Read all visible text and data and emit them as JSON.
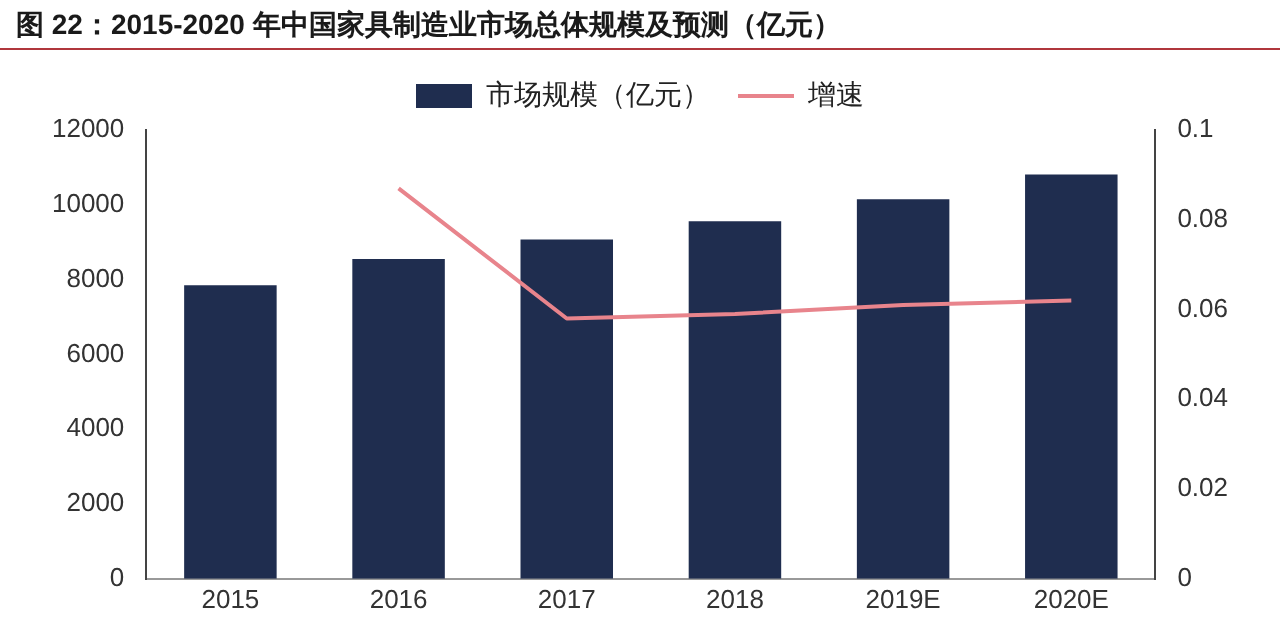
{
  "chart_data": {
    "type": "bar",
    "title": "图 22：2015-2020 年中国家具制造业市场总体规模及预测（亿元）",
    "categories": [
      "2015",
      "2016",
      "2017",
      "2018",
      "2019E",
      "2020E"
    ],
    "series": [
      {
        "name": "市场规模（亿元）",
        "color": "#1f2d4f",
        "values": [
          7850,
          8550,
          9070,
          9560,
          10150,
          10810
        ]
      },
      {
        "name": "增速",
        "type": "line",
        "axis": "y2",
        "color": "#e8848c",
        "marker": "none",
        "values": [
          null,
          0.087,
          0.058,
          0.059,
          0.061,
          0.062
        ]
      }
    ],
    "ylim": [
      0,
      12000
    ],
    "yticks": [
      0,
      2000,
      4000,
      6000,
      8000,
      10000,
      12000
    ],
    "y2lim": [
      0,
      0.1
    ],
    "y2ticks": [
      0,
      0.02,
      0.04,
      0.06,
      0.08,
      0.1
    ],
    "grid": false,
    "legend": "top"
  }
}
